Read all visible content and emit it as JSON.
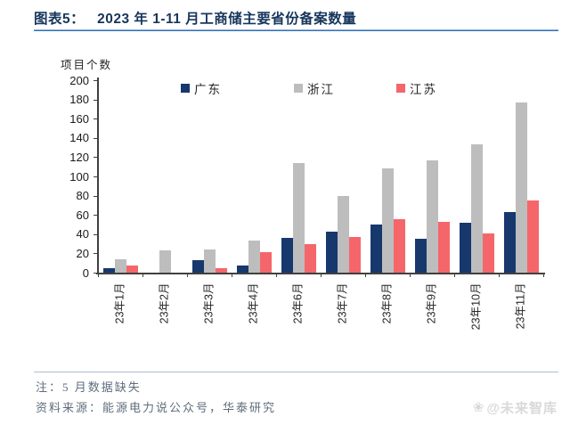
{
  "header": {
    "chart_label": "图表5：",
    "title": "2023 年 1-11 月工商储主要省份备案数量"
  },
  "chart_data": {
    "type": "bar",
    "title": "2023 年 1-11 月工商储主要省份备案数量",
    "ylabel": "项目个数",
    "xlabel": "",
    "ylim": [
      0,
      200
    ],
    "ytick_step": 20,
    "grid": false,
    "legend_position": "top",
    "categories": [
      "23年1月",
      "23年2月",
      "23年3月",
      "23年4月",
      "23年6月",
      "23年7月",
      "23年8月",
      "23年9月",
      "23年10月",
      "23年11月"
    ],
    "series": [
      {
        "name": "广东",
        "color": "#17386d",
        "values": [
          5,
          0,
          13,
          7,
          36,
          43,
          50,
          35,
          52,
          63
        ]
      },
      {
        "name": "浙江",
        "color": "#bdbdbd",
        "values": [
          14,
          23,
          24,
          33,
          114,
          80,
          108,
          117,
          133,
          177
        ]
      },
      {
        "name": "江苏",
        "color": "#f5666b",
        "values": [
          7,
          0,
          5,
          21,
          30,
          37,
          56,
          53,
          41,
          75
        ]
      }
    ]
  },
  "footer": {
    "note": "注：5 月数据缺失",
    "source": "资料来源：能源电力说公众号，华泰研究"
  },
  "watermark": {
    "icon": "❀",
    "text": "@未来智库"
  },
  "colors": {
    "title": "#17365d",
    "accent_underline": "#2e74b5",
    "axis": "#404040"
  }
}
